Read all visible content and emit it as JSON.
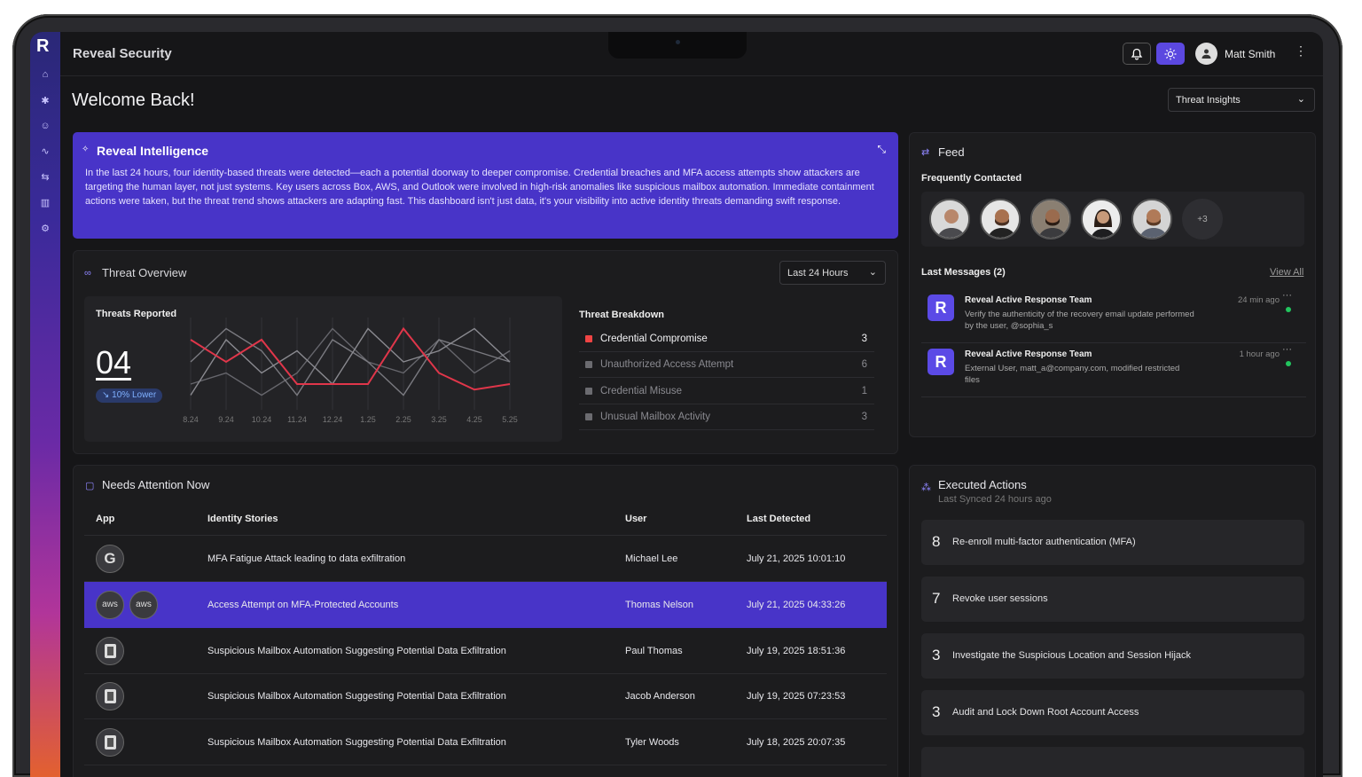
{
  "app": {
    "title": "Reveal Security",
    "logo": "R",
    "user_name": "Matt Smith"
  },
  "welcome": "Welcome Back!",
  "insights_select": "Threat Insights",
  "intelligence": {
    "title": "Reveal Intelligence",
    "body": "In the last 24 hours, four identity-based threats were detected—each a potential doorway to deeper compromise. Credential breaches and MFA access attempts show attackers are targeting the human layer, not just systems. Key users across Box, AWS, and Outlook were involved in high-risk anomalies like suspicious mailbox automation. Immediate containment actions were taken, but the threat trend shows attackers are adapting fast. This dashboard isn't just data, it's your visibility into active identity threats demanding swift response."
  },
  "threat_overview": {
    "title": "Threat Overview",
    "range": "Last 24 Hours",
    "reported_label": "Threats Reported",
    "reported_value": "04",
    "badge": "↘ 10% Lower",
    "breakdown_title": "Threat Breakdown",
    "breakdown": [
      {
        "name": "Credential Compromise",
        "count": "3",
        "color": "#ef4444",
        "active": true
      },
      {
        "name": "Unauthorized Access Attempt",
        "count": "6",
        "color": "#6b6b70",
        "active": false
      },
      {
        "name": "Credential Misuse",
        "count": "1",
        "color": "#6b6b70",
        "active": false
      },
      {
        "name": "Unusual Mailbox Activity",
        "count": "3",
        "color": "#6b6b70",
        "active": false
      }
    ]
  },
  "chart_data": {
    "type": "line",
    "x": [
      "8.24",
      "9.24",
      "10.24",
      "11.24",
      "12.24",
      "1.25",
      "2.25",
      "3.25",
      "4.25",
      "5.25"
    ],
    "series": [
      {
        "values": [
          6,
          4,
          6,
          2,
          2,
          2,
          7,
          3,
          1.5,
          2
        ]
      },
      {
        "values": [
          1,
          6,
          3,
          5,
          2,
          7,
          4,
          5,
          7,
          4
        ]
      },
      {
        "values": [
          4,
          7,
          5,
          1,
          6,
          4,
          1,
          6,
          5,
          4
        ]
      },
      {
        "values": [
          2,
          3,
          1,
          3,
          7,
          4,
          3,
          6,
          3,
          5
        ]
      }
    ],
    "ylim": [
      0,
      8
    ],
    "colors": [
      "#e0364a",
      "#8a8a90",
      "#7a7a80",
      "#66666c"
    ]
  },
  "feed": {
    "title": "Feed",
    "frequently_contacted": "Frequently Contacted",
    "more": "+3",
    "last_messages": "Last Messages (2)",
    "view_all": "View All",
    "messages": [
      {
        "from": "Reveal Active Response Team",
        "text": "Verify the authenticity of the recovery email update performed by the user, @sophia_s",
        "time": "24 min ago"
      },
      {
        "from": "Reveal Active Response Team",
        "text": "External User, matt_a@company.com, modified restricted files",
        "time": "1 hour ago"
      }
    ]
  },
  "attention": {
    "title": "Needs Attention Now",
    "columns": [
      "App",
      "Identity Stories",
      "User",
      "Last Detected"
    ],
    "rows": [
      {
        "apps": [
          "G"
        ],
        "story": "MFA Fatigue Attack leading to data exfiltration",
        "user": "Michael Lee",
        "date": "July 21, 2025 10:01:10"
      },
      {
        "apps": [
          "aws",
          "aws"
        ],
        "story": "Access Attempt on MFA-Protected Accounts",
        "user": "Thomas Nelson",
        "date": "July 21, 2025 04:33:26"
      },
      {
        "apps": [
          "O"
        ],
        "story": "Suspicious Mailbox Automation Suggesting Potential Data Exfiltration",
        "user": "Paul Thomas",
        "date": "July 19, 2025 18:51:36"
      },
      {
        "apps": [
          "O"
        ],
        "story": "Suspicious Mailbox Automation Suggesting Potential Data Exfiltration",
        "user": "Jacob Anderson",
        "date": "July 19, 2025 07:23:53"
      },
      {
        "apps": [
          "O"
        ],
        "story": "Suspicious Mailbox Automation Suggesting Potential Data Exfiltration",
        "user": "Tyler Woods",
        "date": "July 18, 2025 20:07:35"
      }
    ]
  },
  "executed": {
    "title": "Executed Actions",
    "subtitle": "Last Synced 24 hours ago",
    "items": [
      {
        "num": "8",
        "text": "Re-enroll multi-factor authentication (MFA)"
      },
      {
        "num": "7",
        "text": "Revoke user sessions"
      },
      {
        "num": "3",
        "text": "Investigate the Suspicious Location and Session Hijack"
      },
      {
        "num": "3",
        "text": "Audit and Lock Down Root Account Access"
      }
    ]
  }
}
